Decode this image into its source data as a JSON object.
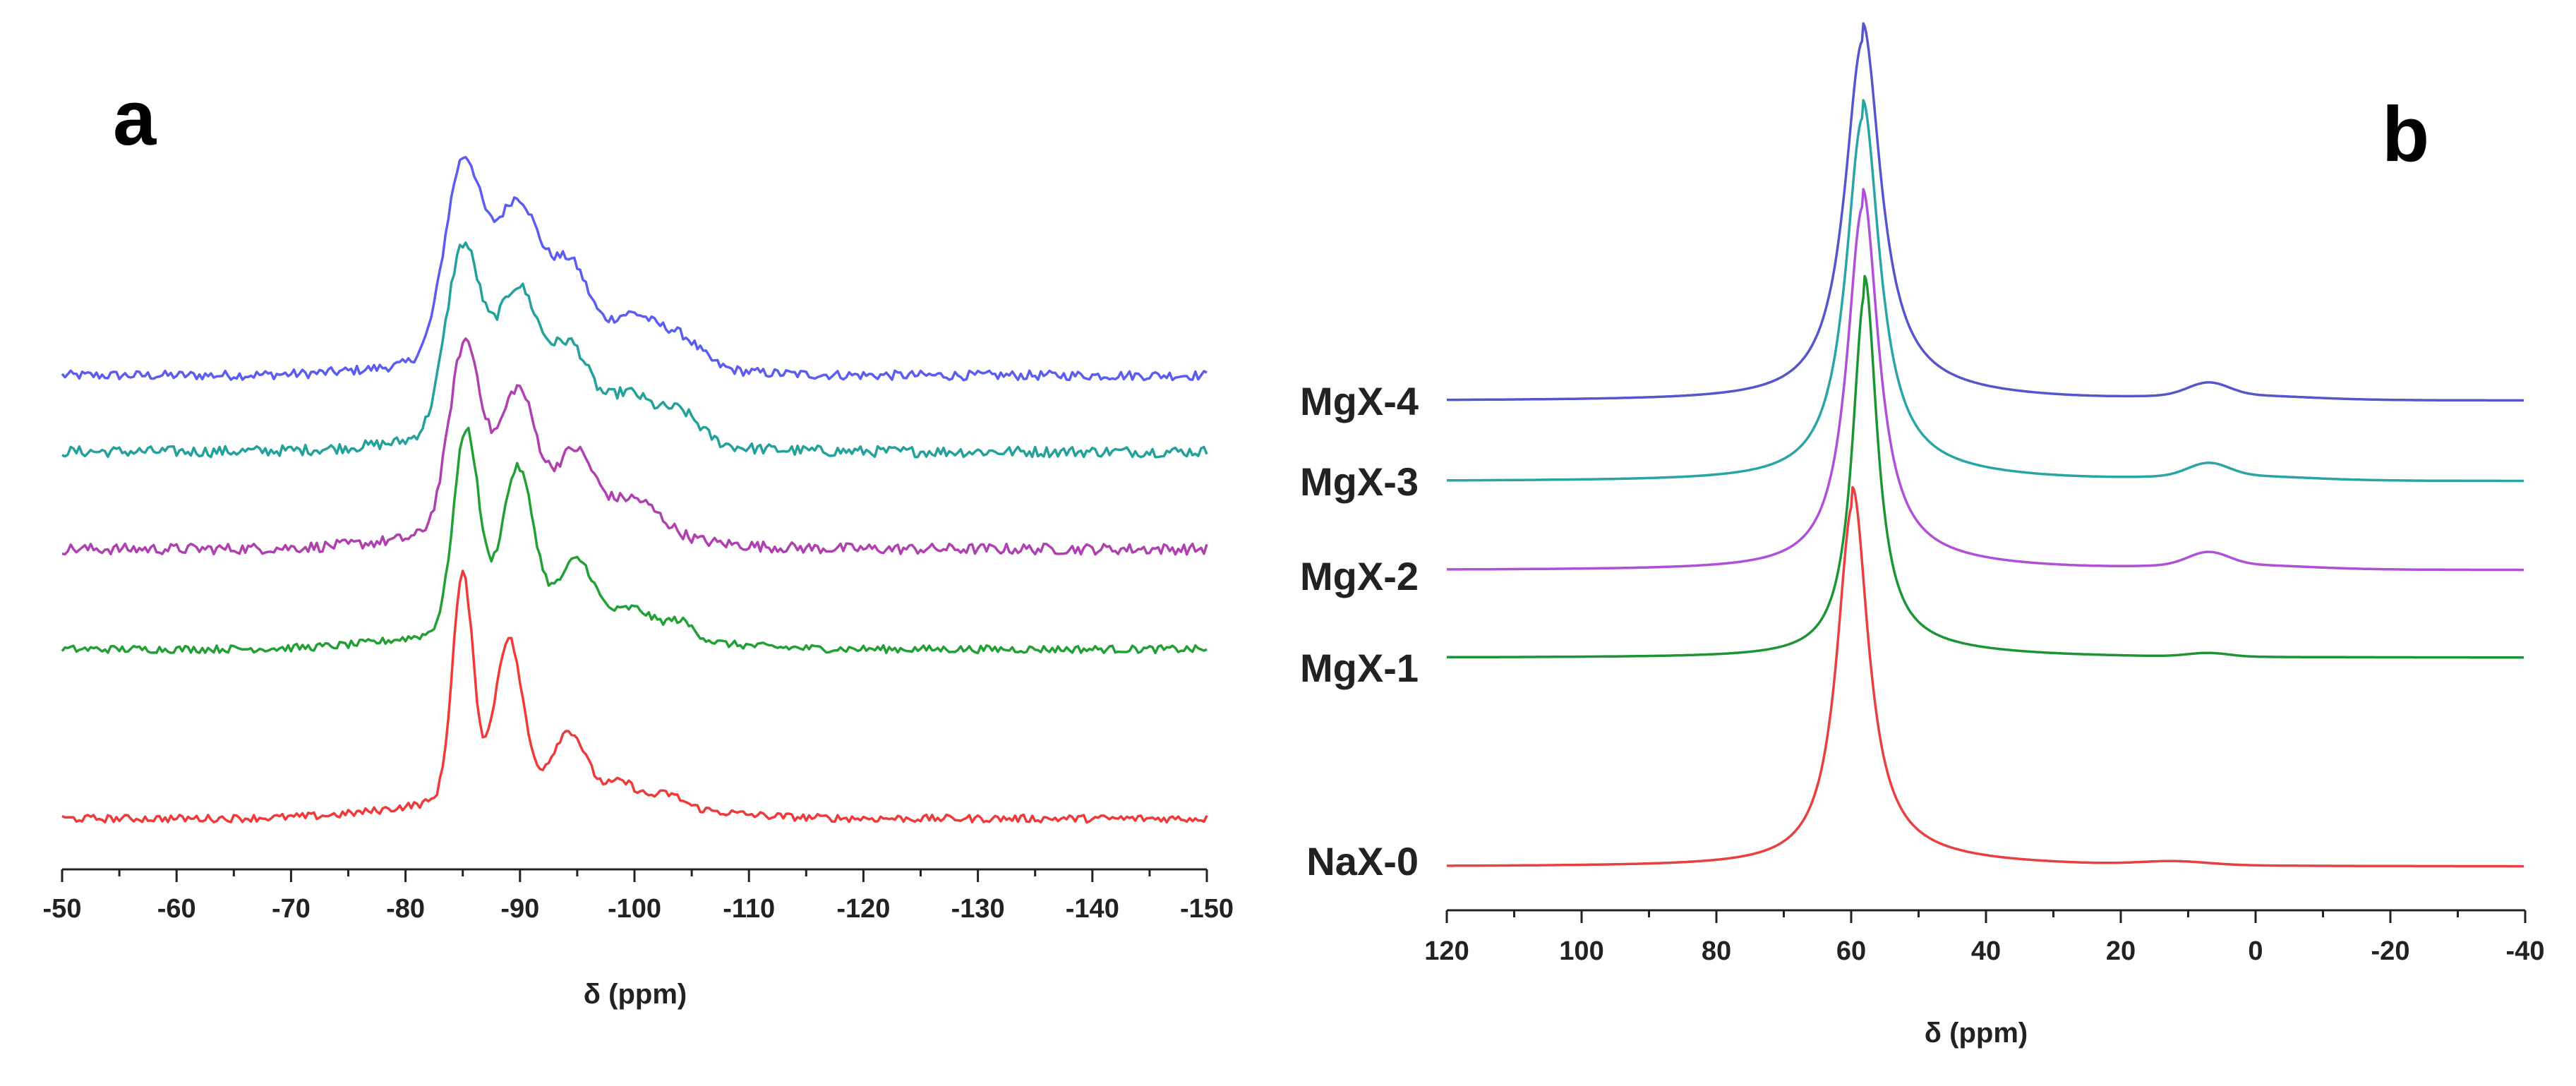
{
  "chart_data": [
    {
      "type": "line",
      "panel": "a",
      "xlabel": "δ (ppm)",
      "ylabel": "",
      "xlim": [
        -50,
        -150
      ],
      "x_ticks": [
        -50,
        -60,
        -70,
        -80,
        -90,
        -100,
        -110,
        -120,
        -130,
        -140,
        -150
      ],
      "tick_labels": [
        "-50",
        "-60",
        "-70",
        "-80",
        "-90",
        "-100",
        "-110",
        "-120",
        "-130",
        "-140",
        "-150"
      ],
      "series": [
        {
          "name": "MgX-4",
          "color": "#5b5cf0",
          "offset": 4,
          "noise": 0.025,
          "peaks": [
            [
              -85,
              1.0,
              1.6
            ],
            [
              -89.8,
              0.78,
              2.0
            ],
            [
              -94.5,
              0.42,
              1.6
            ],
            [
              -99.8,
              0.22,
              2.0
            ],
            [
              -104,
              0.14,
              1.8
            ]
          ]
        },
        {
          "name": "MgX-3",
          "color": "#23a19b",
          "offset": 3,
          "noise": 0.03,
          "peaks": [
            [
              -85,
              1.0,
              1.5
            ],
            [
              -89.8,
              0.76,
              1.9
            ],
            [
              -94.5,
              0.42,
              1.6
            ],
            [
              -99.5,
              0.22,
              1.9
            ],
            [
              -104,
              0.16,
              1.7
            ]
          ]
        },
        {
          "name": "MgX-2",
          "color": "#b040b0",
          "offset": 2,
          "noise": 0.03,
          "peaks": [
            [
              -85.2,
              1.02,
              1.4
            ],
            [
              -89.8,
              0.74,
              1.6
            ],
            [
              -94.8,
              0.4,
              1.6
            ],
            [
              -100,
              0.18,
              2.2
            ]
          ]
        },
        {
          "name": "MgX-1",
          "color": "#22a035",
          "offset": 1,
          "noise": 0.02,
          "peaks": [
            [
              -85.3,
              1.05,
              1.1
            ],
            [
              -89.8,
              0.82,
              1.4
            ],
            [
              -95,
              0.34,
              1.5
            ],
            [
              -100,
              0.12,
              1.6
            ],
            [
              -104,
              0.09,
              1.2
            ]
          ]
        },
        {
          "name": "NaX-0",
          "color": "#f03a3a",
          "offset": 0,
          "noise": 0.018,
          "peaks": [
            [
              -85,
              1.05,
              0.9
            ],
            [
              -89,
              0.72,
              1.2
            ],
            [
              -94.3,
              0.28,
              1.4
            ],
            [
              -99,
              0.07,
              1.2
            ],
            [
              -103,
              0.05,
              1.2
            ]
          ]
        }
      ]
    },
    {
      "type": "line",
      "panel": "b",
      "xlabel": "δ (ppm)",
      "ylabel": "",
      "xlim": [
        120,
        -40
      ],
      "x_ticks": [
        120,
        100,
        80,
        60,
        40,
        20,
        0,
        -20,
        -40
      ],
      "tick_labels": [
        "120",
        "100",
        "80",
        "60",
        "40",
        "20",
        "0",
        "-20",
        "-40"
      ],
      "series": [
        {
          "name": "MgX-4",
          "color": "#5555cc",
          "offset": 4,
          "peak_center": 58.3,
          "peak_width": 3.2,
          "minor_peak": [
            7,
            0.035,
            3
          ]
        },
        {
          "name": "MgX-3",
          "color": "#2aa5a5",
          "offset": 3,
          "peak_center": 58.3,
          "peak_width": 3.0,
          "minor_peak": [
            7,
            0.035,
            3
          ]
        },
        {
          "name": "MgX-2",
          "color": "#b050d8",
          "offset": 2,
          "peak_center": 58.3,
          "peak_width": 2.8,
          "minor_peak": [
            7,
            0.035,
            3
          ]
        },
        {
          "name": "MgX-1",
          "color": "#1e9535",
          "offset": 1,
          "peak_center": 58.0,
          "peak_width": 2.2,
          "minor_peak": [
            7,
            0.01,
            3
          ]
        },
        {
          "name": "NaX-0",
          "color": "#e84040",
          "offset": 0,
          "peak_center": 59.8,
          "peak_width": 2.8,
          "minor_peak": [
            12,
            0.01,
            5
          ]
        }
      ]
    }
  ]
}
